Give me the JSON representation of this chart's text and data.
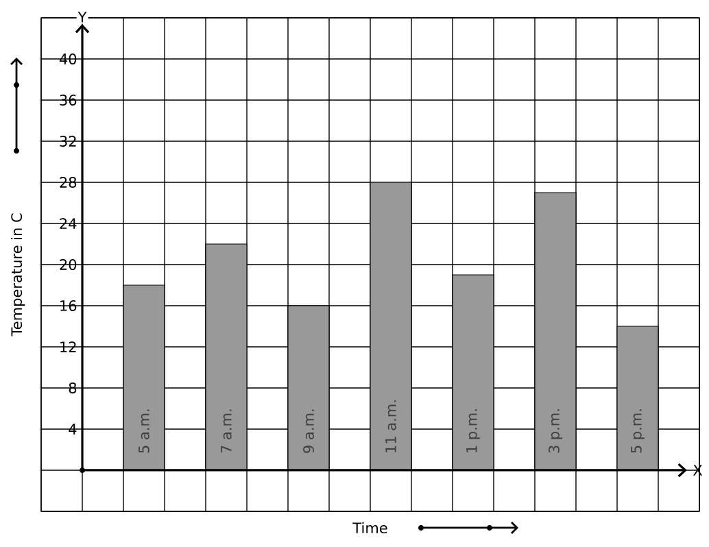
{
  "chart_data": {
    "type": "bar",
    "xlabel": "Time",
    "ylabel": "Temperature in C",
    "categories": [
      "5 a.m.",
      "7 a.m.",
      "9 a.m.",
      "11 a.m.",
      "1 p.m.",
      "3 p.m.",
      "5 p.m."
    ],
    "values": [
      18,
      22,
      16,
      28,
      19,
      27,
      14
    ],
    "color": "#999999",
    "ylim": [
      -4,
      44
    ],
    "yticks": [
      {
        "value": -4,
        "label": null
      },
      {
        "value": 0,
        "label": null
      },
      4,
      8,
      12,
      16,
      20,
      24,
      28,
      32,
      36,
      40,
      {
        "value": 44,
        "label": null
      }
    ],
    "grid": true,
    "annotations": [
      "Y",
      "X"
    ]
  }
}
